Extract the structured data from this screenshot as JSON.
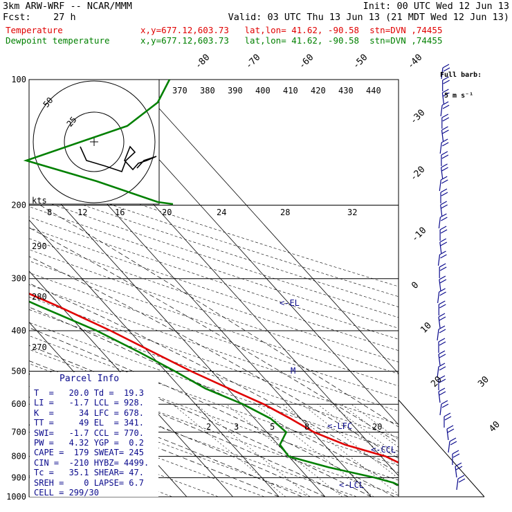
{
  "header": {
    "model": "3km ARW-WRF -- NCAR/MMM",
    "init": "Init: 00 UTC Wed 12 Jun 13",
    "fcst": "Fcst:    27 h",
    "valid": "Valid: 03 UTC Thu 13 Jun 13 (21 MDT Wed 12 Jun 13)",
    "temp_label": "Temperature",
    "dew_label": "Dewpoint temperature",
    "temp_loc": "x,y=677.12,603.73   lat,lon= 41.62, -90.58  stn=DVN ,74455",
    "dew_loc": "x,y=677.12,603.73   lat,lon= 41.62, -90.58  stn=DVN ,74455"
  },
  "wind": {
    "barb_label_1": "Full barb:",
    "barb_label_2": "5 m s⁻¹"
  },
  "parcel_info": {
    "title": "Parcel Info",
    "rows": [
      "T  =   20.0 Td =  19.3",
      "LI =   -1.7 LCL = 928.",
      "K  =     34 LFC = 678.",
      "TT =     49 EL  = 341.",
      "SWI=   -1.7 CCL = 770.",
      "PW =   4.32 YGP =  0.2",
      "CAPE =  179 SWEAT= 245",
      "CIN =  -210 HYBZ= 4499.",
      "Tc =   35.1 SHEAR= 47.",
      "SREH =    0 LAPSE= 6.7",
      "CELL = 299/30"
    ]
  },
  "hodograph": {
    "ring_labels": [
      "50",
      "25"
    ],
    "unit": "kts"
  },
  "levels": {
    "el": "<-EL",
    "lfc": "<-LFC",
    "ccl": "<-CCL",
    "lcl": "<-LCL",
    "m": "M"
  },
  "chart_data": {
    "type": "line",
    "title": "",
    "pressure_ticks": [
      100,
      200,
      300,
      400,
      500,
      600,
      700,
      800,
      900,
      1000
    ],
    "pressure_range": [
      100,
      1000
    ],
    "temp_range": [
      -40,
      40
    ],
    "isotherm_labels_top": [
      "-80",
      "-70",
      "-60",
      "-50",
      "-40"
    ],
    "isotherm_labels_right": [
      "-30",
      "-20",
      "-10",
      "0",
      "10",
      "20",
      "30",
      "40"
    ],
    "theta_labels": [
      "370",
      "380",
      "390",
      "400",
      "410",
      "420",
      "430",
      "440"
    ],
    "theta_left_labels": [
      "290",
      "280",
      "270"
    ],
    "mixing_ratio_labels_upper": [
      "8",
      "12",
      "16",
      "20",
      "24",
      "28",
      "32"
    ],
    "mixing_ratio_labels_lower": [
      "2",
      "3",
      "5",
      "8",
      "20"
    ],
    "series": [
      {
        "name": "Temperature",
        "color": "#e00000",
        "points": [
          [
            1000,
            19.9
          ],
          [
            975,
            19.0
          ],
          [
            950,
            19.2
          ],
          [
            925,
            21.0
          ],
          [
            900,
            23.0
          ],
          [
            850,
            23.8
          ],
          [
            800,
            21.0
          ],
          [
            750,
            14.5
          ],
          [
            700,
            10.2
          ],
          [
            650,
            7.8
          ],
          [
            600,
            4.8
          ],
          [
            550,
            0.3
          ],
          [
            500,
            -4.5
          ],
          [
            450,
            -9.0
          ],
          [
            400,
            -14.0
          ],
          [
            350,
            -20.5
          ],
          [
            300,
            -29.0
          ],
          [
            250,
            -38.5
          ],
          [
            200,
            -50.0
          ],
          [
            175,
            -56.5
          ],
          [
            150,
            -61.0
          ],
          [
            125,
            -62.5
          ],
          [
            110,
            -65.5
          ],
          [
            100,
            -67.5
          ]
        ]
      },
      {
        "name": "Dewpoint temperature",
        "color": "#008000",
        "points": [
          [
            1000,
            19.3
          ],
          [
            975,
            18.9
          ],
          [
            950,
            18.8
          ],
          [
            925,
            17.5
          ],
          [
            900,
            14.5
          ],
          [
            850,
            6.5
          ],
          [
            800,
            0.0
          ],
          [
            750,
            0.4
          ],
          [
            700,
            4.2
          ],
          [
            650,
            3.5
          ],
          [
            600,
            0.3
          ],
          [
            550,
            -4.8
          ],
          [
            500,
            -8.0
          ],
          [
            450,
            -12.0
          ],
          [
            400,
            -17.0
          ],
          [
            350,
            -24.5
          ],
          [
            300,
            -32.5
          ],
          [
            250,
            -42.5
          ],
          [
            210,
            -53.0
          ],
          [
            190,
            -58.0
          ],
          [
            175,
            -68.0
          ],
          [
            160,
            -77.0
          ],
          [
            145,
            -88.0
          ],
          [
            130,
            -105.0
          ],
          [
            120,
            -110.0
          ],
          [
            100,
            -117.0
          ]
        ]
      }
    ]
  }
}
